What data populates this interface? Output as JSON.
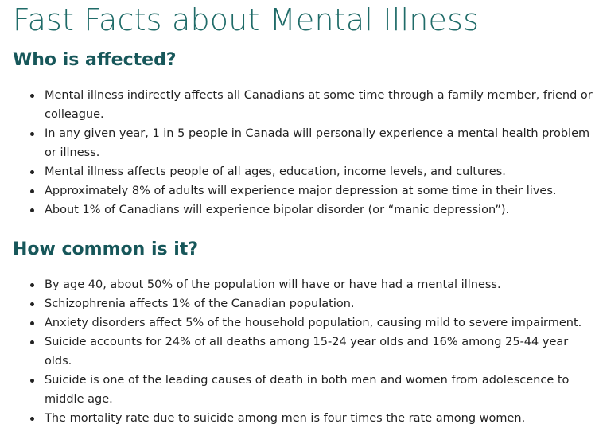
{
  "page": {
    "title": "Fast Facts about Mental Illness"
  },
  "sections": [
    {
      "heading": "Who is affected?",
      "items": [
        "Mental illness indirectly affects all Canadians at some time through a family member, friend or colleague.",
        "In any given year, 1 in 5 people in Canada will personally experience a mental health problem or illness.",
        "Mental illness affects people of all ages, education, income levels, and cultures.",
        "Approximately 8% of adults will experience major depression at some time in their lives.",
        "About 1% of Canadians will experience bipolar disorder (or “manic depression”)."
      ]
    },
    {
      "heading": "How common is it?",
      "items": [
        "By age 40, about 50% of the population will have or have had a mental illness.",
        "Schizophrenia affects 1% of the Canadian population.",
        "Anxiety disorders affect 5% of the household population, causing mild to severe impairment.",
        "Suicide accounts for 24% of all deaths among 15-24 year olds and 16% among 25-44 year olds.",
        "Suicide is one of the leading causes of death in both men and women from adolescence to middle age.",
        "The mortality rate due to suicide among men is four times the rate among women."
      ]
    }
  ]
}
